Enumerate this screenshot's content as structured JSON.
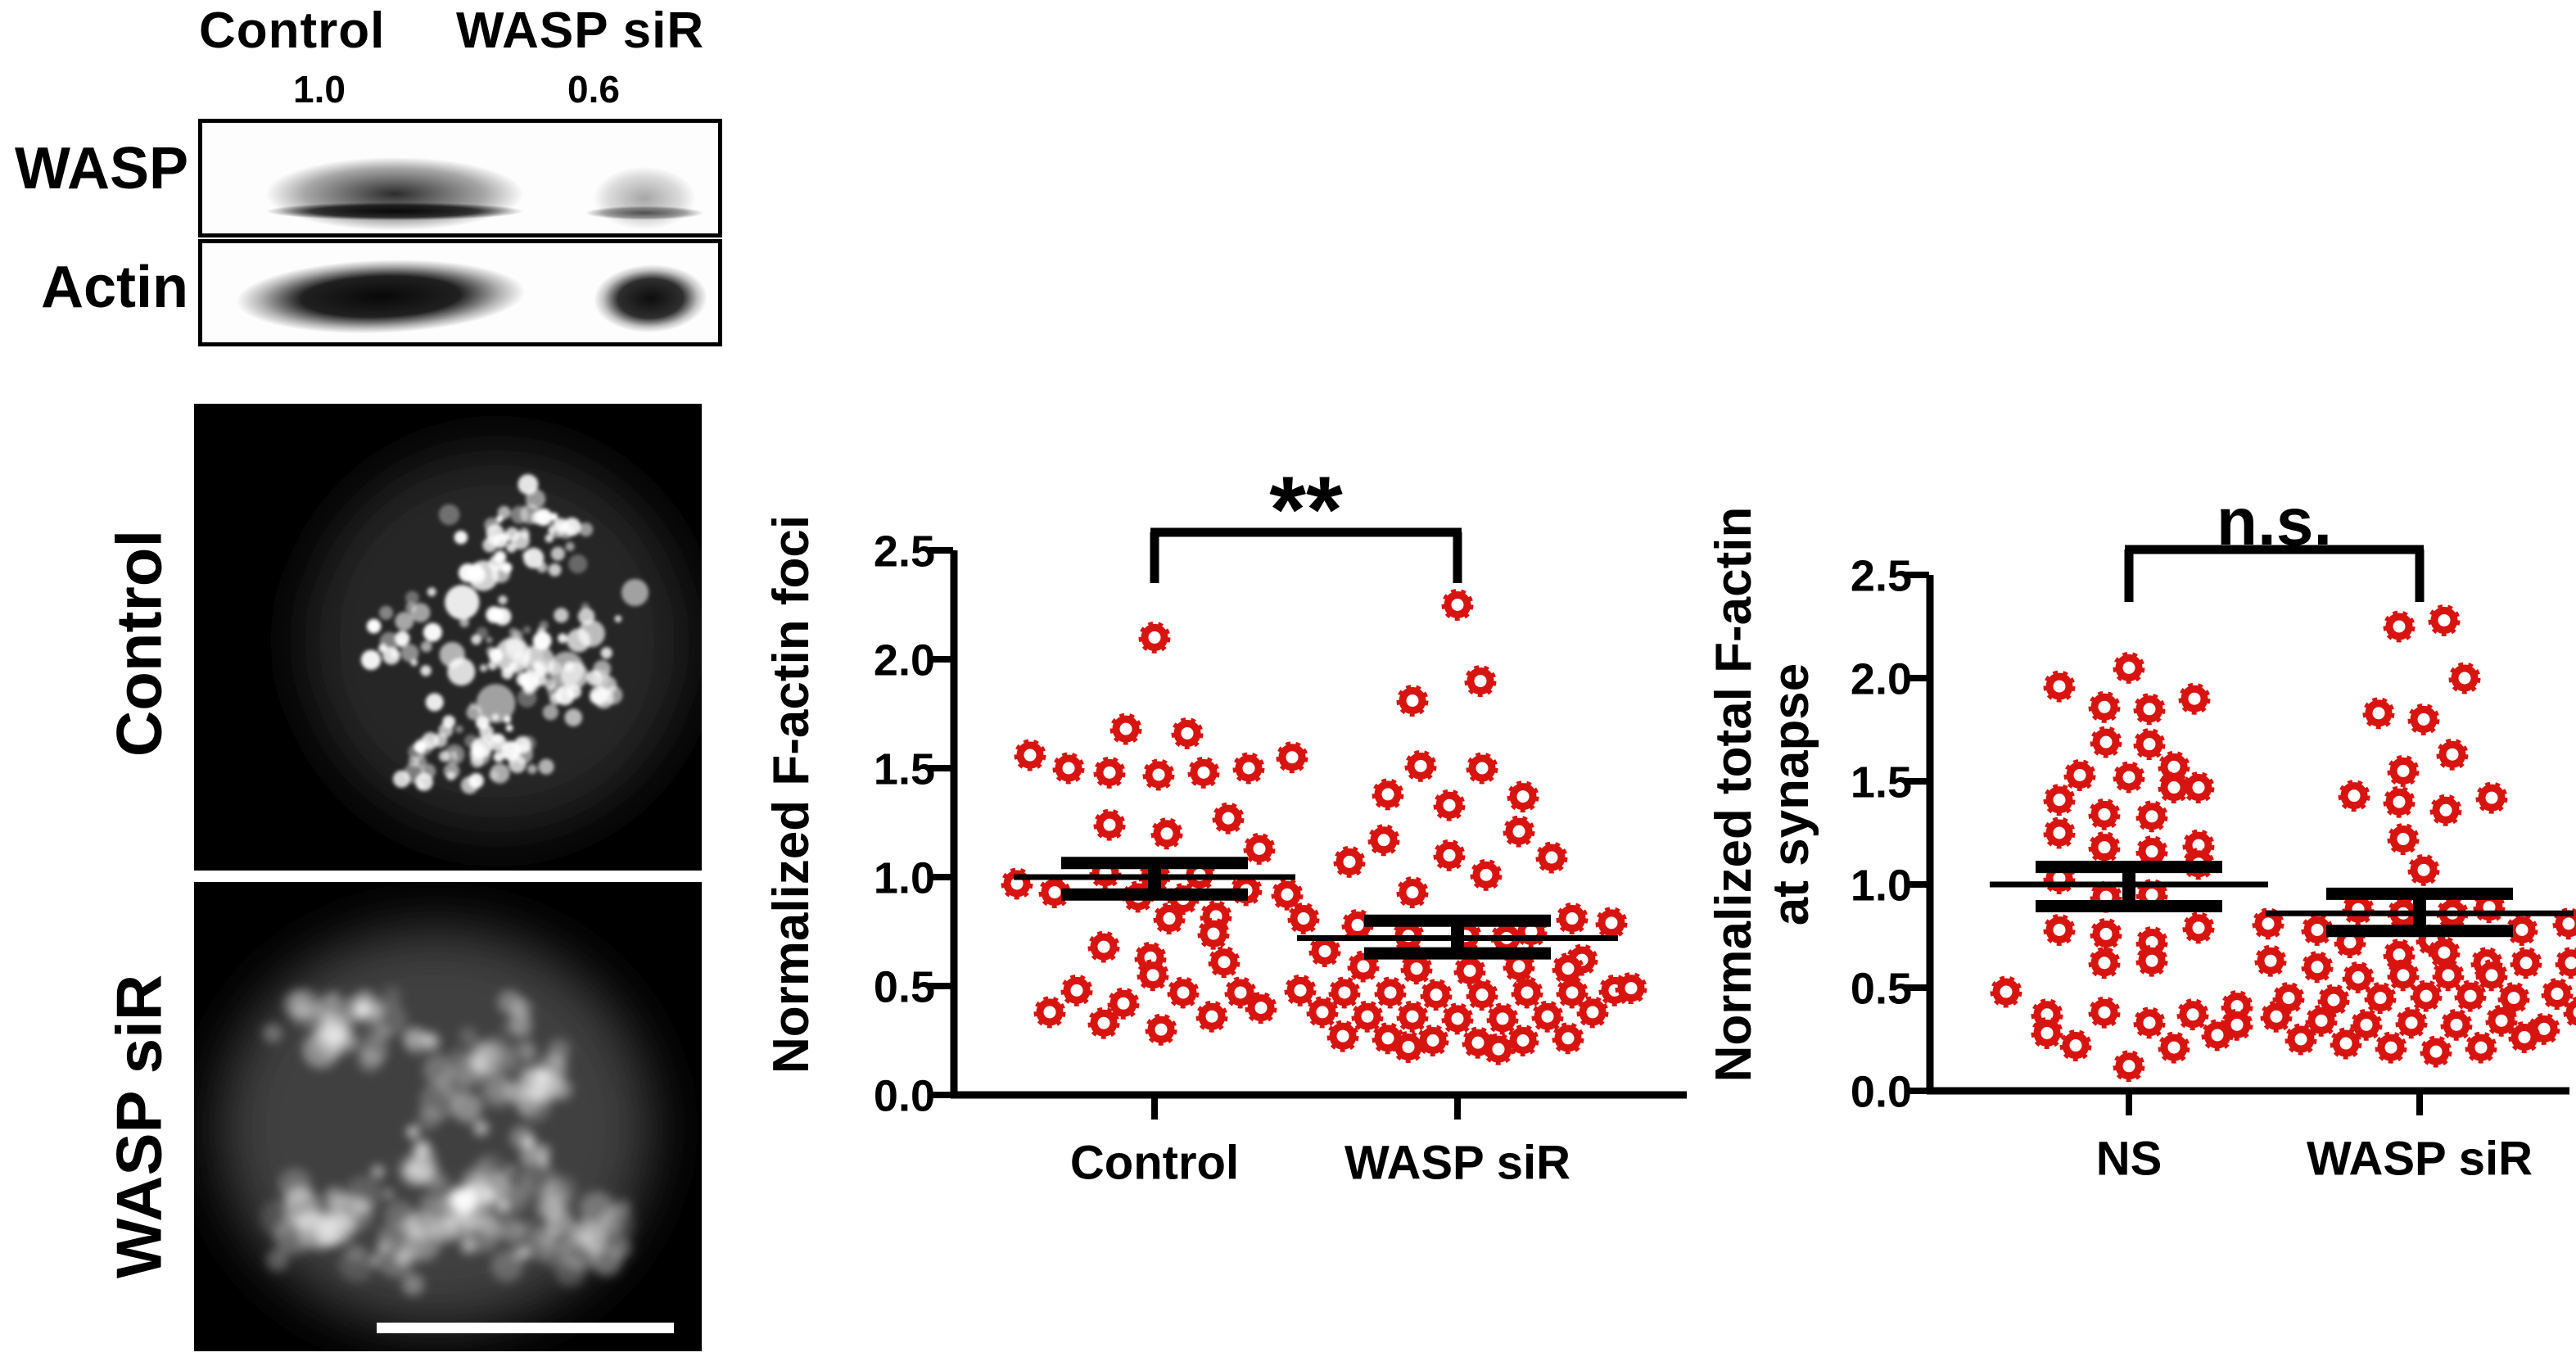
{
  "blot": {
    "col_labels": [
      "Control",
      "WASP siR"
    ],
    "quantification": [
      "1.0",
      "0.6"
    ],
    "row_labels": [
      "WASP",
      "Actin"
    ]
  },
  "microscopy": {
    "panel_labels": [
      "Control",
      "WASP siR"
    ]
  },
  "colors": {
    "marker": "#d81410",
    "axis": "#000000",
    "scale_bar": "#ffffff"
  },
  "chart_data": [
    {
      "type": "scatter",
      "title": "",
      "xlabel": "",
      "ylabel": "Normalized F-actin foci",
      "ylabel_lines": [
        "Normalized F-actin foci"
      ],
      "categories": [
        "Control",
        "WASP siR"
      ],
      "yticks": [
        "0.0",
        "0.5",
        "1.0",
        "1.5",
        "2.0",
        "2.5"
      ],
      "ylim": [
        0,
        2.5
      ],
      "grid": false,
      "legend": null,
      "marker_shape": "open-circle",
      "significance": "**",
      "series": [
        {
          "name": "Control",
          "mean": 1.0,
          "sem_upper": 1.065,
          "sem_lower": 0.92,
          "points": [
            [
              0,
              2.1
            ],
            [
              -35,
              1.68
            ],
            [
              40,
              1.66
            ],
            [
              -152,
              1.56
            ],
            [
              -105,
              1.5
            ],
            [
              -55,
              1.48
            ],
            [
              5,
              1.47
            ],
            [
              60,
              1.48
            ],
            [
              115,
              1.5
            ],
            [
              168,
              1.55
            ],
            [
              -55,
              1.24
            ],
            [
              15,
              1.2
            ],
            [
              90,
              1.27
            ],
            [
              128,
              1.13
            ],
            [
              -168,
              0.97
            ],
            [
              -122,
              0.93
            ],
            [
              -60,
              1.02
            ],
            [
              0,
              1.0
            ],
            [
              55,
              1.01
            ],
            [
              112,
              0.94
            ],
            [
              162,
              0.92
            ],
            [
              -20,
              0.91
            ],
            [
              35,
              0.9
            ],
            [
              18,
              0.81
            ],
            [
              75,
              0.82
            ],
            [
              72,
              0.74
            ],
            [
              -62,
              0.68
            ],
            [
              -5,
              0.63
            ],
            [
              -2,
              0.55
            ],
            [
              85,
              0.61
            ],
            [
              -95,
              0.48
            ],
            [
              -38,
              0.42
            ],
            [
              35,
              0.47
            ],
            [
              105,
              0.47
            ],
            [
              -128,
              0.38
            ],
            [
              -62,
              0.33
            ],
            [
              8,
              0.3
            ],
            [
              70,
              0.36
            ],
            [
              130,
              0.4
            ]
          ]
        },
        {
          "name": "WASP siR",
          "mean": 0.72,
          "sem_upper": 0.8,
          "sem_lower": 0.65,
          "points": [
            [
              0,
              2.25
            ],
            [
              28,
              1.9
            ],
            [
              -55,
              1.81
            ],
            [
              -45,
              1.51
            ],
            [
              30,
              1.5
            ],
            [
              -85,
              1.38
            ],
            [
              -10,
              1.33
            ],
            [
              80,
              1.37
            ],
            [
              75,
              1.21
            ],
            [
              -90,
              1.17
            ],
            [
              -132,
              1.07
            ],
            [
              -10,
              1.1
            ],
            [
              115,
              1.09
            ],
            [
              35,
              1.01
            ],
            [
              -55,
              0.93
            ],
            [
              -188,
              0.81
            ],
            [
              -122,
              0.78
            ],
            [
              140,
              0.81
            ],
            [
              188,
              0.79
            ],
            [
              90,
              0.75
            ],
            [
              -60,
              0.73
            ],
            [
              10,
              0.73
            ],
            [
              60,
              0.72
            ],
            [
              -162,
              0.66
            ],
            [
              152,
              0.62
            ],
            [
              -115,
              0.59
            ],
            [
              -50,
              0.58
            ],
            [
              15,
              0.57
            ],
            [
              75,
              0.59
            ],
            [
              135,
              0.58
            ],
            [
              -192,
              0.48
            ],
            [
              -138,
              0.47
            ],
            [
              -82,
              0.47
            ],
            [
              -26,
              0.46
            ],
            [
              30,
              0.46
            ],
            [
              85,
              0.47
            ],
            [
              140,
              0.47
            ],
            [
              192,
              0.48
            ],
            [
              212,
              0.49
            ],
            [
              -165,
              0.38
            ],
            [
              -110,
              0.36
            ],
            [
              -55,
              0.36
            ],
            [
              0,
              0.35
            ],
            [
              55,
              0.35
            ],
            [
              110,
              0.36
            ],
            [
              165,
              0.38
            ],
            [
              -140,
              0.27
            ],
            [
              -85,
              0.26
            ],
            [
              -30,
              0.25
            ],
            [
              25,
              0.24
            ],
            [
              80,
              0.25
            ],
            [
              135,
              0.26
            ],
            [
              50,
              0.21
            ],
            [
              -60,
              0.22
            ]
          ]
        }
      ]
    },
    {
      "type": "scatter",
      "title": "",
      "xlabel": "",
      "ylabel": "Normalized total F-actin at synapse",
      "ylabel_lines": [
        "Normalized total F-actin",
        "at synapse"
      ],
      "categories": [
        "NS",
        "WASP siR"
      ],
      "yticks": [
        "0.0",
        "0.5",
        "1.0",
        "1.5",
        "2.0",
        "2.5"
      ],
      "ylim": [
        0,
        2.5
      ],
      "grid": false,
      "legend": null,
      "marker_shape": "open-circle",
      "significance": "n.s.",
      "series": [
        {
          "name": "NS",
          "mean": 1.0,
          "sem_upper": 1.085,
          "sem_lower": 0.895,
          "points": [
            [
              0,
              2.05
            ],
            [
              -85,
              1.96
            ],
            [
              -30,
              1.86
            ],
            [
              25,
              1.85
            ],
            [
              80,
              1.9
            ],
            [
              -28,
              1.69
            ],
            [
              25,
              1.68
            ],
            [
              -60,
              1.53
            ],
            [
              0,
              1.52
            ],
            [
              55,
              1.57
            ],
            [
              85,
              1.47
            ],
            [
              -85,
              1.41
            ],
            [
              -30,
              1.34
            ],
            [
              28,
              1.33
            ],
            [
              -85,
              1.25
            ],
            [
              -30,
              1.18
            ],
            [
              28,
              1.16
            ],
            [
              85,
              1.19
            ],
            [
              85,
              1.1
            ],
            [
              -85,
              1.03
            ],
            [
              -28,
              0.94
            ],
            [
              28,
              0.95
            ],
            [
              -85,
              0.78
            ],
            [
              -28,
              0.76
            ],
            [
              28,
              0.72
            ],
            [
              28,
              0.63
            ],
            [
              85,
              0.79
            ],
            [
              -30,
              0.62
            ],
            [
              -150,
              0.48
            ],
            [
              -100,
              0.37
            ],
            [
              -100,
              0.28
            ],
            [
              -30,
              0.38
            ],
            [
              25,
              0.33
            ],
            [
              78,
              0.37
            ],
            [
              132,
              0.41
            ],
            [
              132,
              0.32
            ],
            [
              -65,
              0.22
            ],
            [
              0,
              0.12
            ],
            [
              55,
              0.21
            ],
            [
              108,
              0.27
            ],
            [
              55,
              1.47
            ]
          ]
        },
        {
          "name": "WASP siR",
          "mean": 0.86,
          "sem_upper": 0.955,
          "sem_lower": 0.775,
          "points": [
            [
              -25,
              2.25
            ],
            [
              30,
              2.28
            ],
            [
              55,
              2.0
            ],
            [
              -50,
              1.83
            ],
            [
              5,
              1.8
            ],
            [
              40,
              1.63
            ],
            [
              -20,
              1.55
            ],
            [
              -80,
              1.43
            ],
            [
              -25,
              1.4
            ],
            [
              32,
              1.36
            ],
            [
              88,
              1.42
            ],
            [
              -20,
              1.22
            ],
            [
              5,
              1.07
            ],
            [
              -75,
              0.88
            ],
            [
              -20,
              0.86
            ],
            [
              40,
              0.86
            ],
            [
              85,
              0.89
            ],
            [
              -185,
              0.81
            ],
            [
              -125,
              0.78
            ],
            [
              125,
              0.78
            ],
            [
              182,
              0.81
            ],
            [
              -85,
              0.72
            ],
            [
              15,
              0.73
            ],
            [
              -25,
              0.66
            ],
            [
              30,
              0.67
            ],
            [
              82,
              0.62
            ],
            [
              130,
              0.62
            ],
            [
              -182,
              0.63
            ],
            [
              -125,
              0.6
            ],
            [
              -75,
              0.55
            ],
            [
              -20,
              0.56
            ],
            [
              35,
              0.56
            ],
            [
              88,
              0.56
            ],
            [
              185,
              0.62
            ],
            [
              -160,
              0.45
            ],
            [
              -105,
              0.44
            ],
            [
              -48,
              0.45
            ],
            [
              8,
              0.46
            ],
            [
              62,
              0.46
            ],
            [
              115,
              0.45
            ],
            [
              168,
              0.47
            ],
            [
              195,
              0.38
            ],
            [
              -175,
              0.36
            ],
            [
              -120,
              0.34
            ],
            [
              -65,
              0.32
            ],
            [
              -10,
              0.33
            ],
            [
              45,
              0.32
            ],
            [
              100,
              0.34
            ],
            [
              152,
              0.3
            ],
            [
              -145,
              0.25
            ],
            [
              -90,
              0.23
            ],
            [
              -35,
              0.21
            ],
            [
              20,
              0.19
            ],
            [
              75,
              0.21
            ],
            [
              128,
              0.26
            ]
          ]
        }
      ]
    }
  ]
}
